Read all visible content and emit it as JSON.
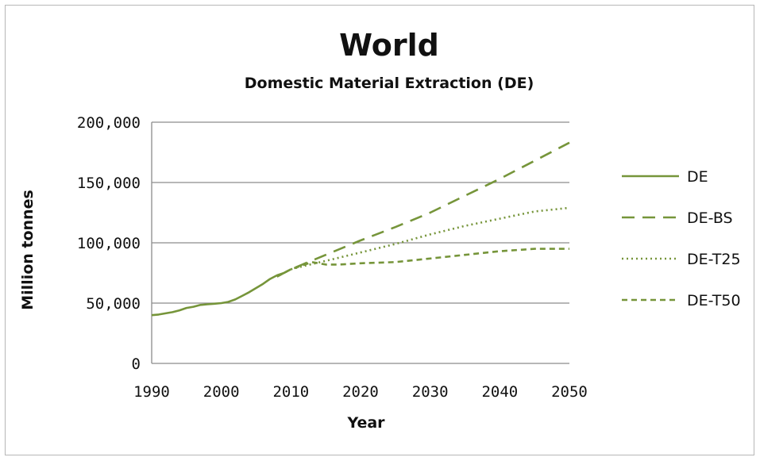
{
  "chart_data": {
    "type": "line",
    "title": "World",
    "subtitle": "Domestic Material Extraction (DE)",
    "xlabel": "Year",
    "ylabel": "Million tonnes",
    "xlim": [
      1990,
      2050
    ],
    "ylim": [
      0,
      200000
    ],
    "x_ticks": [
      "1990",
      "2000",
      "2010",
      "2020",
      "2030",
      "2040",
      "2050"
    ],
    "y_ticks": [
      "0",
      "50,000",
      "100,000",
      "150,000",
      "200,000"
    ],
    "y_tick_values": [
      0,
      50000,
      100000,
      150000,
      200000
    ],
    "x_tick_values": [
      1990,
      2000,
      2010,
      2020,
      2030,
      2040,
      2050
    ],
    "grid": "horizontal",
    "legend_position": "right",
    "color": "#76953a",
    "series": [
      {
        "name": "DE",
        "style": "solid",
        "x": [
          1990,
          1991,
          1992,
          1993,
          1994,
          1995,
          1996,
          1997,
          1998,
          1999,
          2000,
          2001,
          2002,
          2003,
          2004,
          2005,
          2006,
          2007,
          2008,
          2009,
          2010
        ],
        "values": [
          40000,
          40500,
          41500,
          42500,
          44000,
          46000,
          47000,
          48500,
          49000,
          49500,
          50000,
          51000,
          53000,
          56000,
          59000,
          62500,
          66000,
          70000,
          73000,
          75000,
          78000
        ]
      },
      {
        "name": "DE-BS",
        "style": "long-dash",
        "x": [
          2008,
          2010,
          2015,
          2020,
          2025,
          2030,
          2035,
          2040,
          2045,
          2050
        ],
        "values": [
          72000,
          78000,
          90000,
          102000,
          113000,
          125000,
          139000,
          153000,
          168000,
          183000
        ]
      },
      {
        "name": "DE-T25",
        "style": "dotted",
        "x": [
          2010,
          2012,
          2015,
          2020,
          2025,
          2030,
          2035,
          2040,
          2045,
          2050
        ],
        "values": [
          78000,
          81000,
          85000,
          92000,
          99000,
          107000,
          114000,
          120000,
          126000,
          129000
        ]
      },
      {
        "name": "DE-T50",
        "style": "short-dash",
        "x": [
          2008,
          2010,
          2012,
          2013,
          2015,
          2017,
          2020,
          2025,
          2030,
          2035,
          2040,
          2045,
          2050
        ],
        "values": [
          72000,
          78000,
          82000,
          84000,
          82000,
          82000,
          83000,
          84000,
          87000,
          90000,
          93000,
          95000,
          95000
        ]
      }
    ]
  }
}
